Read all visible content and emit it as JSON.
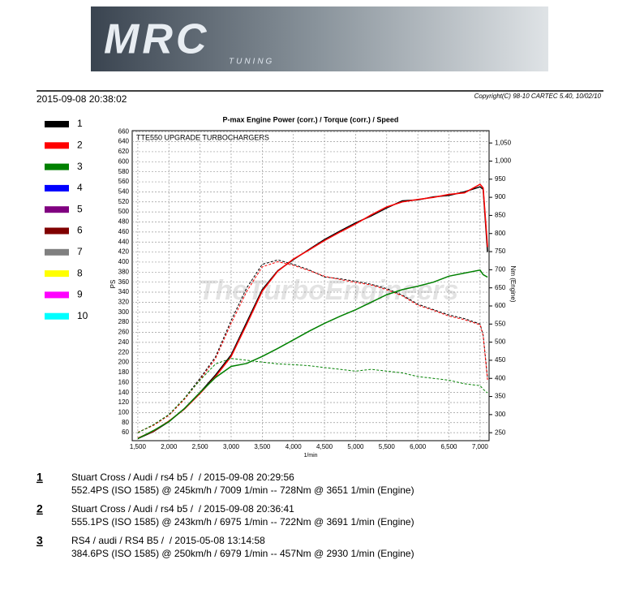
{
  "header": {
    "logo": "MRC",
    "logo_sub": "TUNING",
    "date": "2015-09-08 20:38:02",
    "copyright": "Copyright(C) 98-10 CARTEC 5.40, 10/02/10"
  },
  "chart_data": {
    "type": "line",
    "title": "P-max Engine Power (corr.) / Torque (corr.) / Speed",
    "annotation": "TTE550 UPGRADE TURBOCHARGERS",
    "watermark": "TheTurboEngineers",
    "x_label": "1/min",
    "y_label": "PS",
    "y2_label": "Nm (Engine)",
    "x": [
      1500,
      1750,
      2000,
      2250,
      2500,
      2750,
      3000,
      3250,
      3500,
      3750,
      4000,
      4250,
      4500,
      4750,
      5000,
      5250,
      5500,
      5750,
      6000,
      6250,
      6500,
      6750,
      7000,
      7050,
      7120
    ],
    "xlim": [
      1410,
      7145
    ],
    "xticks": [
      {
        "value": 1500,
        "label": "1,500"
      },
      {
        "value": 2000,
        "label": "2,000"
      },
      {
        "value": 2500,
        "label": "2,500"
      },
      {
        "value": 3000,
        "label": "3,000"
      },
      {
        "value": 3500,
        "label": "3,500"
      },
      {
        "value": 4000,
        "label": "4,000"
      },
      {
        "value": 4500,
        "label": "4,500"
      },
      {
        "value": 5000,
        "label": "5,000"
      },
      {
        "value": 5500,
        "label": "5,500"
      },
      {
        "value": 6000,
        "label": "6,000"
      },
      {
        "value": 6500,
        "label": "6,500"
      },
      {
        "value": 7000,
        "label": "7,000"
      }
    ],
    "ylim": [
      44,
      662
    ],
    "yticks": [
      60,
      80,
      100,
      120,
      140,
      160,
      180,
      200,
      220,
      240,
      260,
      280,
      300,
      320,
      340,
      360,
      380,
      400,
      420,
      440,
      460,
      480,
      500,
      520,
      540,
      560,
      580,
      600,
      620,
      640,
      660
    ],
    "y2lim": [
      228,
      1084
    ],
    "y2ticks": [
      250,
      300,
      350,
      400,
      450,
      500,
      550,
      600,
      650,
      700,
      750,
      800,
      850,
      900,
      950,
      {
        "value": 1000,
        "label": "1,000"
      },
      {
        "value": 1050,
        "label": "1,050"
      }
    ],
    "grid": true,
    "series": [
      {
        "name": "1",
        "color": "#000000",
        "values": [
          48,
          62,
          82,
          108,
          140,
          175,
          215,
          280,
          345,
          383,
          405,
          425,
          445,
          462,
          478,
          492,
          508,
          522,
          524,
          530,
          533,
          540,
          550,
          545,
          420
        ],
        "torque": [
          250,
          272,
          300,
          345,
          400,
          460,
          560,
          650,
          715,
          727,
          715,
          700,
          680,
          675,
          668,
          660,
          648,
          630,
          605,
          590,
          575,
          565,
          550,
          520,
          400
        ]
      },
      {
        "name": "2",
        "color": "#ff0000",
        "values": [
          49,
          63,
          83,
          107,
          138,
          172,
          212,
          276,
          342,
          382,
          406,
          424,
          443,
          460,
          476,
          494,
          510,
          520,
          525,
          529,
          535,
          538,
          555,
          548,
          430
        ],
        "torque": [
          251,
          270,
          298,
          342,
          396,
          455,
          552,
          640,
          708,
          722,
          712,
          698,
          682,
          673,
          665,
          658,
          645,
          628,
          602,
          588,
          572,
          562,
          548,
          518,
          395
        ]
      },
      {
        "name": "3",
        "color": "#008000",
        "values": [
          48,
          64,
          82,
          108,
          140,
          170,
          192,
          198,
          212,
          228,
          245,
          262,
          278,
          292,
          305,
          320,
          335,
          345,
          352,
          360,
          372,
          378,
          384,
          375,
          370
        ],
        "torque": [
          250,
          272,
          300,
          345,
          395,
          440,
          455,
          450,
          445,
          440,
          438,
          435,
          430,
          425,
          420,
          425,
          420,
          415,
          405,
          400,
          395,
          385,
          380,
          370,
          360
        ]
      },
      {
        "name": "4",
        "color": "#0000ff"
      },
      {
        "name": "5",
        "color": "#800080"
      },
      {
        "name": "6",
        "color": "#800000"
      },
      {
        "name": "7",
        "color": "#808080"
      },
      {
        "name": "8",
        "color": "#ffff00"
      },
      {
        "name": "9",
        "color": "#ff00ff"
      },
      {
        "name": "10",
        "color": "#00ffff"
      }
    ]
  },
  "runs": [
    {
      "number": "1",
      "line1": "Stuart Cross / Audi / rs4 b5 /  / 2015-09-08 20:29:56",
      "line2": "552.4PS (ISO 1585) @ 245km/h / 7009 1/min -- 728Nm @ 3651 1/min (Engine)"
    },
    {
      "number": "2",
      "line1": "Stuart Cross / Audi / rs4 b5 /  / 2015-09-08 20:36:41",
      "line2": "555.1PS (ISO 1585) @ 243km/h / 6975 1/min -- 722Nm @ 3691 1/min (Engine)"
    },
    {
      "number": "3",
      "line1": "RS4 / audi / RS4 B5 /  / 2015-05-08 13:14:58",
      "line2": "384.6PS (ISO 1585) @ 250km/h / 6979 1/min -- 457Nm @ 2930 1/min (Engine)"
    }
  ]
}
